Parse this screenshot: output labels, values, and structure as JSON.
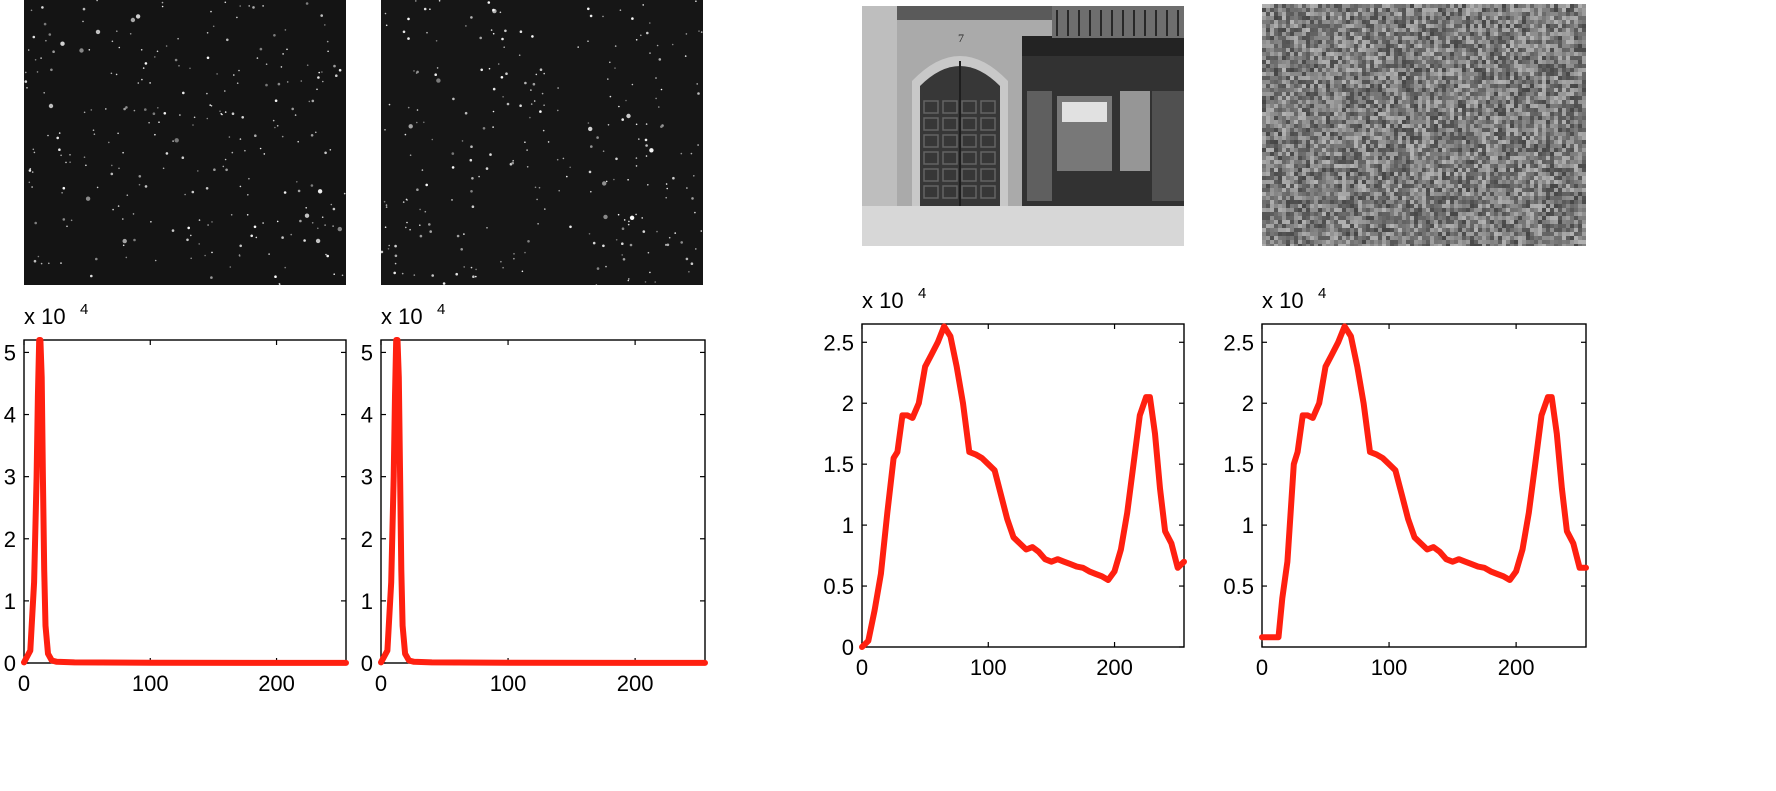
{
  "images": [
    {
      "name": "star-field-image-1",
      "kind": "stars",
      "color": "#141414"
    },
    {
      "name": "star-field-image-2",
      "kind": "stars",
      "color": "#161616"
    },
    {
      "name": "storefront-photo",
      "kind": "photo",
      "color": "#8a8a8a"
    },
    {
      "name": "noise-texture-image",
      "kind": "noise",
      "color": "#7a7a7a"
    }
  ],
  "line_color": "#ff2010",
  "chart_data": [
    {
      "type": "line",
      "title": "",
      "xlabel": "",
      "ylabel": "",
      "scale_label": "x 10",
      "scale_exponent": "4",
      "xlim": [
        0,
        255
      ],
      "ylim": [
        0,
        5.2
      ],
      "xticks": [
        0,
        100,
        200
      ],
      "yticks": [
        0,
        1,
        2,
        3,
        4,
        5
      ],
      "ytick_labels": [
        "0",
        "1",
        "2",
        "3",
        "4",
        "5"
      ],
      "series": [
        {
          "x": [
            0,
            5,
            8,
            10,
            11,
            12,
            13,
            14,
            15,
            16,
            17,
            19,
            22,
            26,
            40,
            100,
            200,
            255
          ],
          "values": [
            0.01,
            0.2,
            1.3,
            3.0,
            4.3,
            5.2,
            5.2,
            4.6,
            3.0,
            1.5,
            0.6,
            0.15,
            0.04,
            0.02,
            0.01,
            0.005,
            0.002,
            0.001
          ]
        }
      ]
    },
    {
      "type": "line",
      "title": "",
      "xlabel": "",
      "ylabel": "",
      "scale_label": "x 10",
      "scale_exponent": "4",
      "xlim": [
        0,
        255
      ],
      "ylim": [
        0,
        5.2
      ],
      "xticks": [
        0,
        100,
        200
      ],
      "yticks": [
        0,
        1,
        2,
        3,
        4,
        5
      ],
      "ytick_labels": [
        "0",
        "1",
        "2",
        "3",
        "4",
        "5"
      ],
      "series": [
        {
          "x": [
            0,
            5,
            8,
            10,
            11,
            12,
            13,
            14,
            15,
            16,
            17,
            19,
            22,
            26,
            40,
            100,
            200,
            255
          ],
          "values": [
            0.01,
            0.2,
            1.3,
            3.0,
            4.3,
            5.2,
            5.2,
            4.6,
            3.0,
            1.5,
            0.6,
            0.15,
            0.04,
            0.02,
            0.01,
            0.005,
            0.002,
            0.001
          ]
        }
      ]
    },
    {
      "type": "line",
      "title": "",
      "xlabel": "",
      "ylabel": "",
      "scale_label": "x 10",
      "scale_exponent": "4",
      "xlim": [
        0,
        255
      ],
      "ylim": [
        0,
        2.65
      ],
      "xticks": [
        0,
        100,
        200
      ],
      "yticks": [
        0,
        0.5,
        1,
        1.5,
        2,
        2.5
      ],
      "ytick_labels": [
        "0",
        "0.5",
        "1",
        "1.5",
        "2",
        "2.5"
      ],
      "series": [
        {
          "x": [
            0,
            5,
            10,
            15,
            20,
            25,
            28,
            32,
            36,
            40,
            45,
            50,
            55,
            60,
            65,
            70,
            75,
            80,
            85,
            90,
            95,
            100,
            105,
            110,
            115,
            120,
            125,
            130,
            135,
            140,
            145,
            150,
            155,
            160,
            165,
            170,
            175,
            180,
            185,
            190,
            195,
            200,
            205,
            210,
            215,
            220,
            225,
            228,
            232,
            236,
            240,
            245,
            250,
            255
          ],
          "values": [
            0.0,
            0.05,
            0.3,
            0.6,
            1.1,
            1.55,
            1.6,
            1.9,
            1.9,
            1.88,
            2.0,
            2.3,
            2.4,
            2.5,
            2.63,
            2.55,
            2.3,
            2.0,
            1.6,
            1.58,
            1.55,
            1.5,
            1.45,
            1.25,
            1.05,
            0.9,
            0.85,
            0.8,
            0.82,
            0.78,
            0.72,
            0.7,
            0.72,
            0.7,
            0.68,
            0.66,
            0.65,
            0.62,
            0.6,
            0.58,
            0.55,
            0.62,
            0.8,
            1.1,
            1.5,
            1.9,
            2.05,
            2.05,
            1.75,
            1.3,
            0.95,
            0.85,
            0.65,
            0.7
          ]
        }
      ]
    },
    {
      "type": "line",
      "title": "",
      "xlabel": "",
      "ylabel": "",
      "scale_label": "x 10",
      "scale_exponent": "4",
      "xlim": [
        0,
        255
      ],
      "ylim": [
        0,
        2.65
      ],
      "xticks": [
        0,
        100,
        200
      ],
      "yticks": [
        0.5,
        1,
        1.5,
        2,
        2.5
      ],
      "ytick_labels": [
        "0.5",
        "1",
        "1.5",
        "2",
        "2.5"
      ],
      "series": [
        {
          "x": [
            0,
            5,
            10,
            13,
            16,
            20,
            25,
            28,
            32,
            36,
            40,
            45,
            50,
            55,
            60,
            65,
            70,
            75,
            80,
            85,
            90,
            95,
            100,
            105,
            110,
            115,
            120,
            125,
            130,
            135,
            140,
            145,
            150,
            155,
            160,
            165,
            170,
            175,
            180,
            185,
            190,
            195,
            200,
            205,
            210,
            215,
            220,
            225,
            228,
            232,
            236,
            240,
            245,
            250,
            255
          ],
          "values": [
            0.08,
            0.08,
            0.08,
            0.08,
            0.4,
            0.7,
            1.5,
            1.6,
            1.9,
            1.9,
            1.88,
            2.0,
            2.3,
            2.4,
            2.5,
            2.63,
            2.55,
            2.3,
            2.0,
            1.6,
            1.58,
            1.55,
            1.5,
            1.45,
            1.25,
            1.05,
            0.9,
            0.85,
            0.8,
            0.82,
            0.78,
            0.72,
            0.7,
            0.72,
            0.7,
            0.68,
            0.66,
            0.65,
            0.62,
            0.6,
            0.58,
            0.55,
            0.62,
            0.8,
            1.1,
            1.5,
            1.9,
            2.05,
            2.05,
            1.75,
            1.3,
            0.95,
            0.85,
            0.65,
            0.65
          ]
        }
      ]
    }
  ]
}
